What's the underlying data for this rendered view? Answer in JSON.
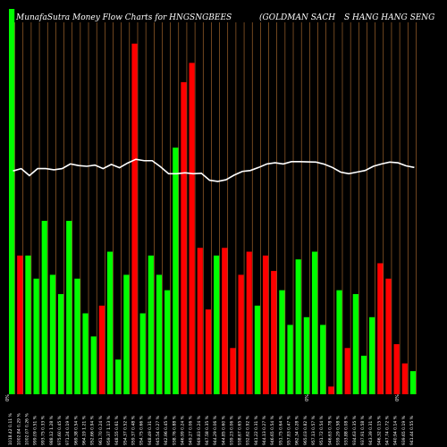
{
  "header": {
    "title": "MunafaSutra  Money Flow  Charts for HNGSNGBEES",
    "company": "(GOLDMAN  SACH",
    "company_cont": "S HANG HANG SENG"
  },
  "colors": {
    "background": "#000000",
    "up": "#00ff00",
    "down": "#ff0000",
    "grid": "#b87333",
    "line": "#ffffff"
  },
  "chart_data": {
    "type": "bar",
    "categories": [
      "1018.42 0.11 %",
      "1002.84 0.29 %",
      "1002.07 0.26 %",
      "999.09 0.51 %",
      "993.75 0.33 %",
      "988.12 1.28 %",
      "975.60 0.45 %",
      "971.24 0.19 %",
      "969.38 0.54 %",
      "964.19 1.21 %",
      "952.66 0.94 %",
      "961.70 0.24 %",
      "959.37 1.13 %",
      "948.55 0.61 %",
      "954.37 0.52 %",
      "959.37 0.48 %",
      "954.75 0.66 %",
      "948.49 0.31 %",
      "945.54 0.27 %",
      "942.96 0.45 %",
      "938.76 0.88 %",
      "946.99 0.24 %",
      "949.27 0.06 %",
      "949.83 0.24 %",
      "947.58 0.35 %",
      "944.29 0.06 %",
      "944.85 0.60 %",
      "939.23 0.06 %",
      "938.67 0.65 %",
      "932.62 0.92 %",
      "941.22 0.31 %",
      "944.13 0.27 %",
      "946.65 0.54 %",
      "951.75 0.64 %",
      "957.83 0.47 %",
      "962.34 0.28 %",
      "965.03 0.82 %",
      "957.13 0.57 %",
      "951.72 0.54 %",
      "946.63 0.78 %",
      "939.29 0.58 %",
      "933.88 0.08 %",
      "934.63 0.35 %",
      "937.91 0.58 %",
      "943.39 0.31 %",
      "946.32 0.15 %",
      "947.74 0.72 %",
      "940.94 0.14 %",
      "939.65 0.19 %",
      "941.44 0.55 %"
    ],
    "values": [
      100,
      36,
      36,
      30,
      45,
      31,
      26,
      45,
      30,
      21,
      15,
      23,
      37,
      9,
      31,
      91,
      21,
      36,
      31,
      27,
      64,
      81,
      86,
      38,
      22,
      36,
      38,
      12,
      31,
      37,
      23,
      36,
      32,
      27,
      18,
      35,
      20,
      37,
      18,
      2,
      27,
      12,
      26,
      10,
      20,
      34,
      30,
      13,
      8,
      6
    ],
    "colors": [
      "up",
      "down",
      "up",
      "up",
      "up",
      "up",
      "up",
      "up",
      "up",
      "up",
      "up",
      "down",
      "up",
      "up",
      "up",
      "down",
      "up",
      "up",
      "up",
      "up",
      "up",
      "down",
      "down",
      "down",
      "down",
      "up",
      "down",
      "down",
      "down",
      "down",
      "up",
      "down",
      "down",
      "up",
      "up",
      "up",
      "up",
      "up",
      "up",
      "down",
      "up",
      "down",
      "up",
      "up",
      "up",
      "down",
      "down",
      "down",
      "down",
      "up"
    ],
    "line": [
      0.62,
      0.61,
      0.64,
      0.61,
      0.61,
      0.615,
      0.61,
      0.59,
      0.597,
      0.6,
      0.595,
      0.61,
      0.592,
      0.606,
      0.586,
      0.57,
      0.576,
      0.576,
      0.602,
      0.632,
      0.632,
      0.628,
      0.632,
      0.63,
      0.66,
      0.665,
      0.658,
      0.638,
      0.622,
      0.618,
      0.605,
      0.59,
      0.585,
      0.59,
      0.58,
      0.58,
      0.581,
      0.582,
      0.591,
      0.605,
      0.625,
      0.632,
      0.625,
      0.618,
      0.6,
      0.59,
      0.582,
      0.585,
      0.598,
      0.605
    ],
    "ylim": [
      0,
      100
    ],
    "zero_labels": [
      "0%",
      "0%",
      "0%"
    ]
  }
}
